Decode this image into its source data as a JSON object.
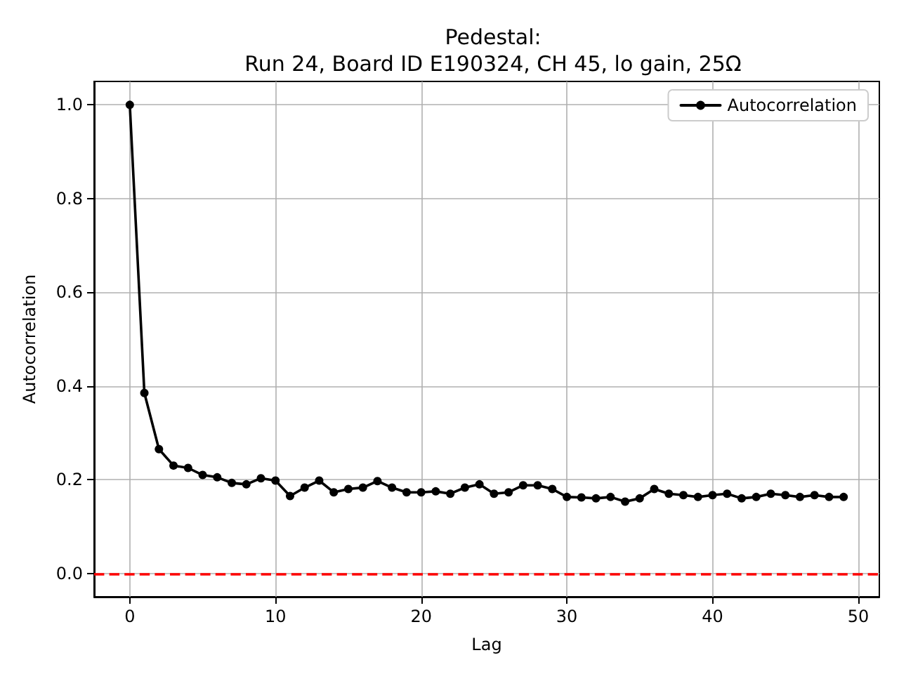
{
  "chart_data": {
    "type": "line",
    "title": "Pedestal:\nRun 24, Board ID E190324, CH 45, lo gain, 25Ω",
    "xlabel": "Lag",
    "ylabel": "Autocorrelation",
    "x": [
      0,
      1,
      2,
      3,
      4,
      5,
      6,
      7,
      8,
      9,
      10,
      11,
      12,
      13,
      14,
      15,
      16,
      17,
      18,
      19,
      20,
      21,
      22,
      23,
      24,
      25,
      26,
      27,
      28,
      29,
      30,
      31,
      32,
      33,
      34,
      35,
      36,
      37,
      38,
      39,
      40,
      41,
      42,
      43,
      44,
      45,
      46,
      47,
      48,
      49
    ],
    "series": [
      {
        "name": "Autocorrelation",
        "color": "#000000",
        "values": [
          1.0,
          0.385,
          0.265,
          0.23,
          0.225,
          0.21,
          0.205,
          0.193,
          0.19,
          0.203,
          0.198,
          0.165,
          0.183,
          0.198,
          0.173,
          0.18,
          0.183,
          0.197,
          0.183,
          0.173,
          0.173,
          0.175,
          0.17,
          0.183,
          0.19,
          0.17,
          0.173,
          0.188,
          0.188,
          0.18,
          0.163,
          0.162,
          0.16,
          0.163,
          0.153,
          0.16,
          0.18,
          0.17,
          0.167,
          0.163,
          0.167,
          0.17,
          0.16,
          0.163,
          0.17,
          0.167,
          0.163,
          0.167,
          0.163,
          0.163
        ]
      }
    ],
    "xlim": [
      -2.45,
      51.45
    ],
    "xticks": [
      0,
      10,
      20,
      30,
      40,
      50
    ],
    "ylim": [
      -0.05,
      1.05
    ],
    "yticks": [
      {
        "value": 0,
        "label": "0.0"
      },
      0.2,
      0.4,
      0.6,
      0.8,
      {
        "value": 1,
        "label": "1.0"
      }
    ],
    "ref_lines": [
      {
        "axis": "y",
        "value": 0,
        "color": "#ff0000",
        "line_style": "dashed"
      }
    ],
    "grid": true,
    "legend": "top right",
    "marker": "circle",
    "line_style": "solid"
  }
}
